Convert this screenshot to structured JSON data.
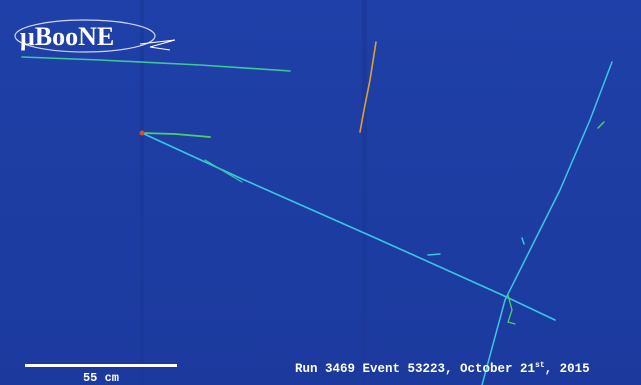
{
  "logo": "μBooNE",
  "scale_bar": {
    "label": "55 cm"
  },
  "caption": {
    "main": "Run 3469 Event 53223, October 21",
    "superscript": "st",
    "tail": ", 2015"
  }
}
